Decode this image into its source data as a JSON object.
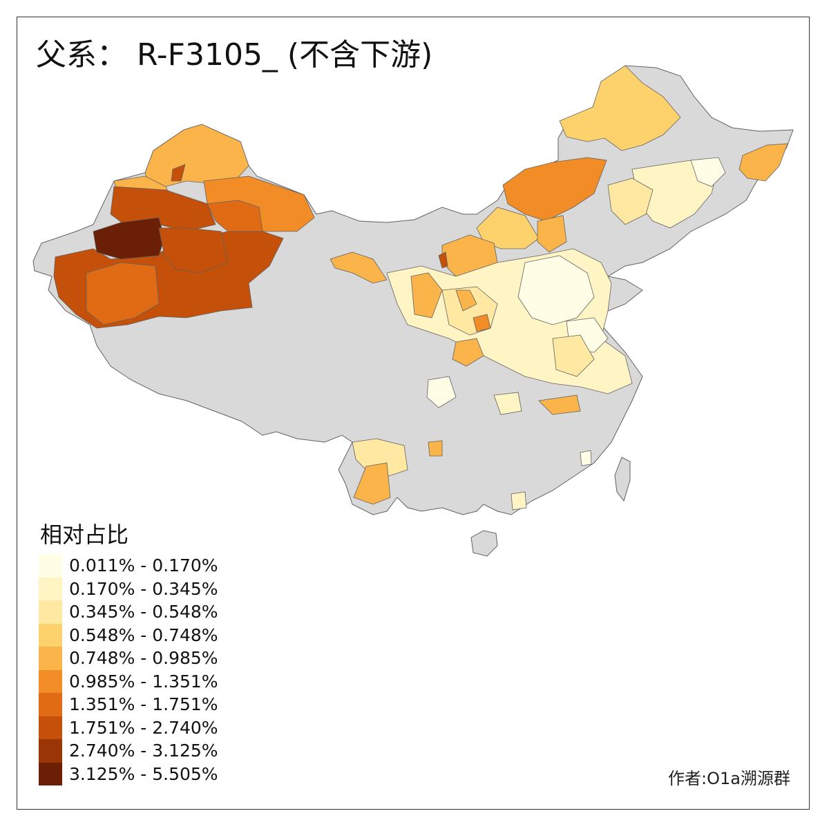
{
  "title": "父系：  R-F3105_ (不含下游)",
  "legend": {
    "title": "相对占比",
    "items": [
      {
        "label": "0.011% - 0.170%",
        "color": "#fffde6"
      },
      {
        "label": "0.170% - 0.345%",
        "color": "#fff4c4"
      },
      {
        "label": "0.345% - 0.548%",
        "color": "#fee8a2"
      },
      {
        "label": "0.548% - 0.748%",
        "color": "#fdd26c"
      },
      {
        "label": "0.748% - 0.985%",
        "color": "#fbb449"
      },
      {
        "label": "0.985% - 1.351%",
        "color": "#f18c26"
      },
      {
        "label": "1.351% - 1.751%",
        "color": "#e06b14"
      },
      {
        "label": "1.751% - 2.740%",
        "color": "#c4500a"
      },
      {
        "label": "2.740% - 3.125%",
        "color": "#9a3506"
      },
      {
        "label": "3.125% - 5.505%",
        "color": "#6b2005"
      }
    ]
  },
  "credit": "作者:O1a溯源群",
  "colors": {
    "no_data": "#d9d9d9",
    "border": "#606060"
  }
}
